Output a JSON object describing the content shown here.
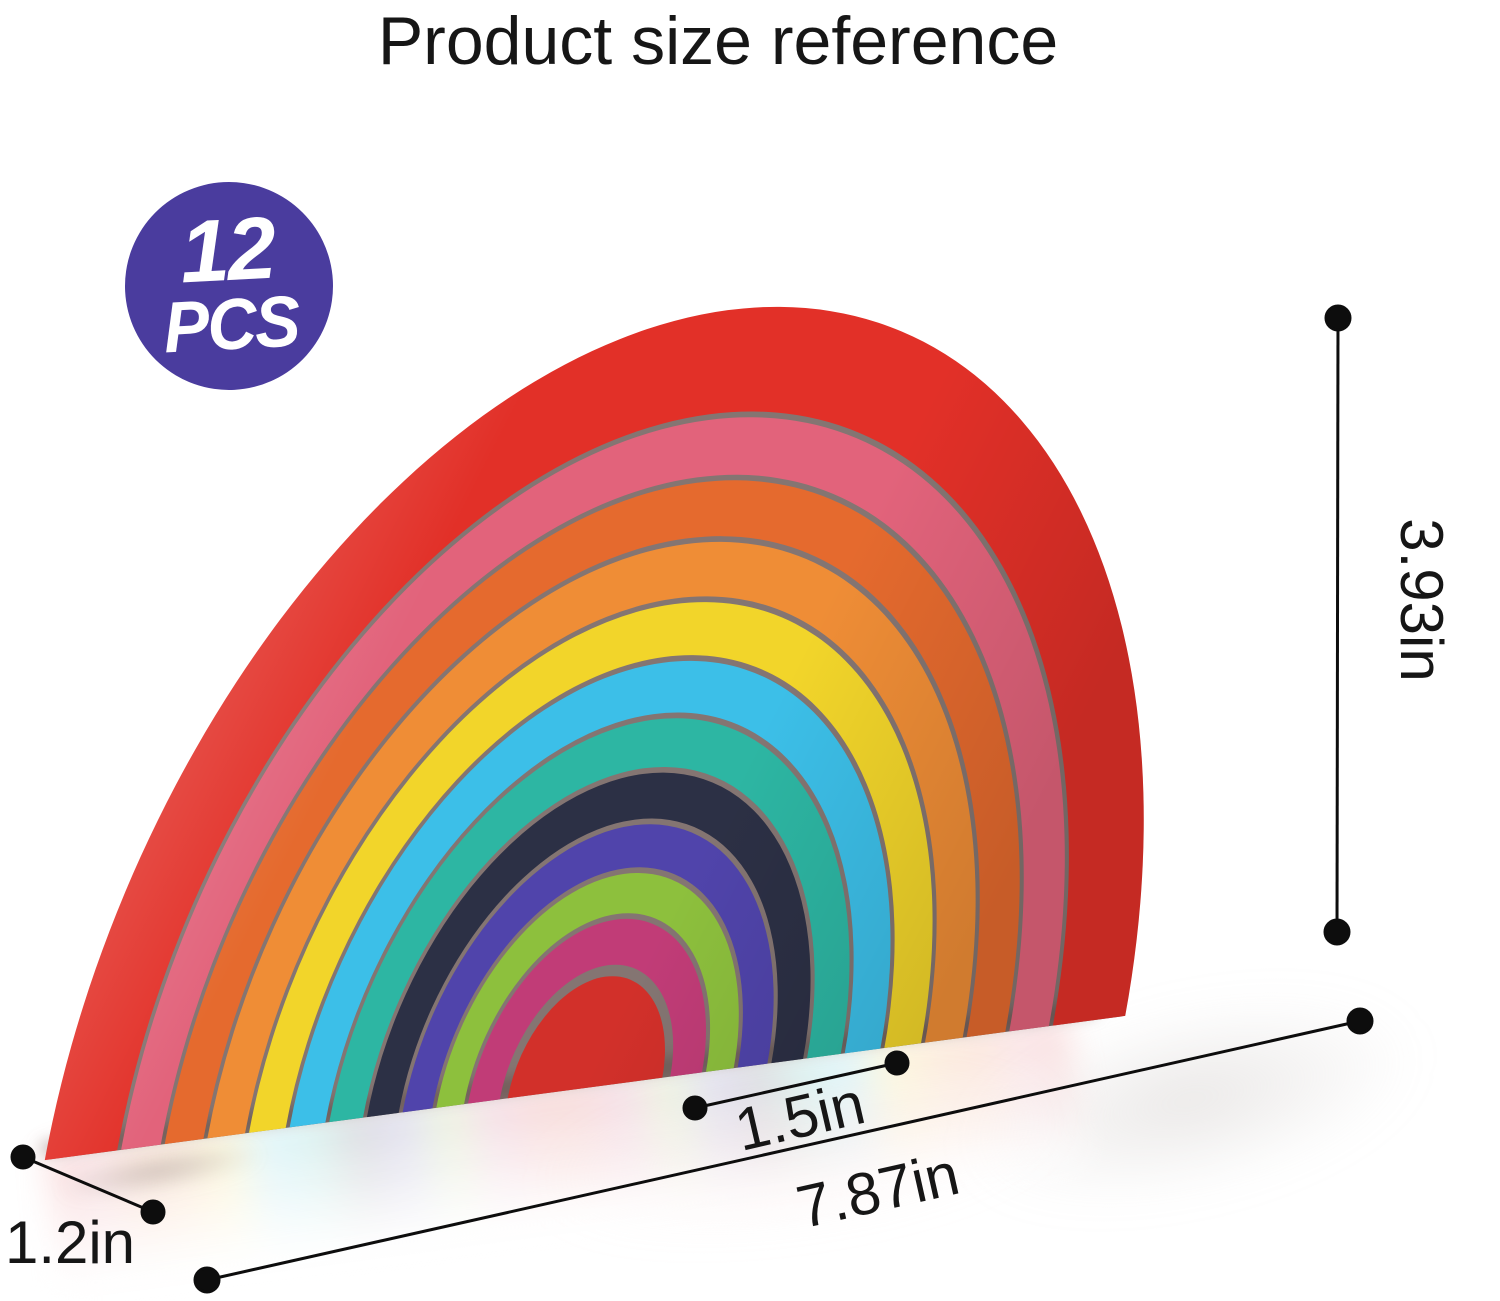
{
  "page": {
    "title": "Product size reference"
  },
  "badge": {
    "count": "12",
    "unit": "PCS",
    "bg_color": "#4a3c9e",
    "text_color": "#ffffff"
  },
  "product": {
    "type": "wooden-rainbow-stacker",
    "piece_count": 12,
    "pieces": [
      {
        "name": "outer-red",
        "color": "#e23028"
      },
      {
        "name": "rose-pink",
        "color": "#e2637b"
      },
      {
        "name": "red-orange",
        "color": "#e56a2e"
      },
      {
        "name": "orange",
        "color": "#ef8d36"
      },
      {
        "name": "yellow",
        "color": "#f2d52a"
      },
      {
        "name": "sky-blue",
        "color": "#3cbfe8"
      },
      {
        "name": "teal",
        "color": "#2db6a3"
      },
      {
        "name": "navy",
        "color": "#2c3045"
      },
      {
        "name": "indigo",
        "color": "#5044ab"
      },
      {
        "name": "green",
        "color": "#8dc03d"
      },
      {
        "name": "magenta",
        "color": "#c13c77"
      },
      {
        "name": "center-red",
        "color": "#d2302a"
      }
    ]
  },
  "dimensions": {
    "height": "3.93in",
    "inner_width": "1.5in",
    "total_width": "7.87in",
    "depth": "1.2in"
  }
}
